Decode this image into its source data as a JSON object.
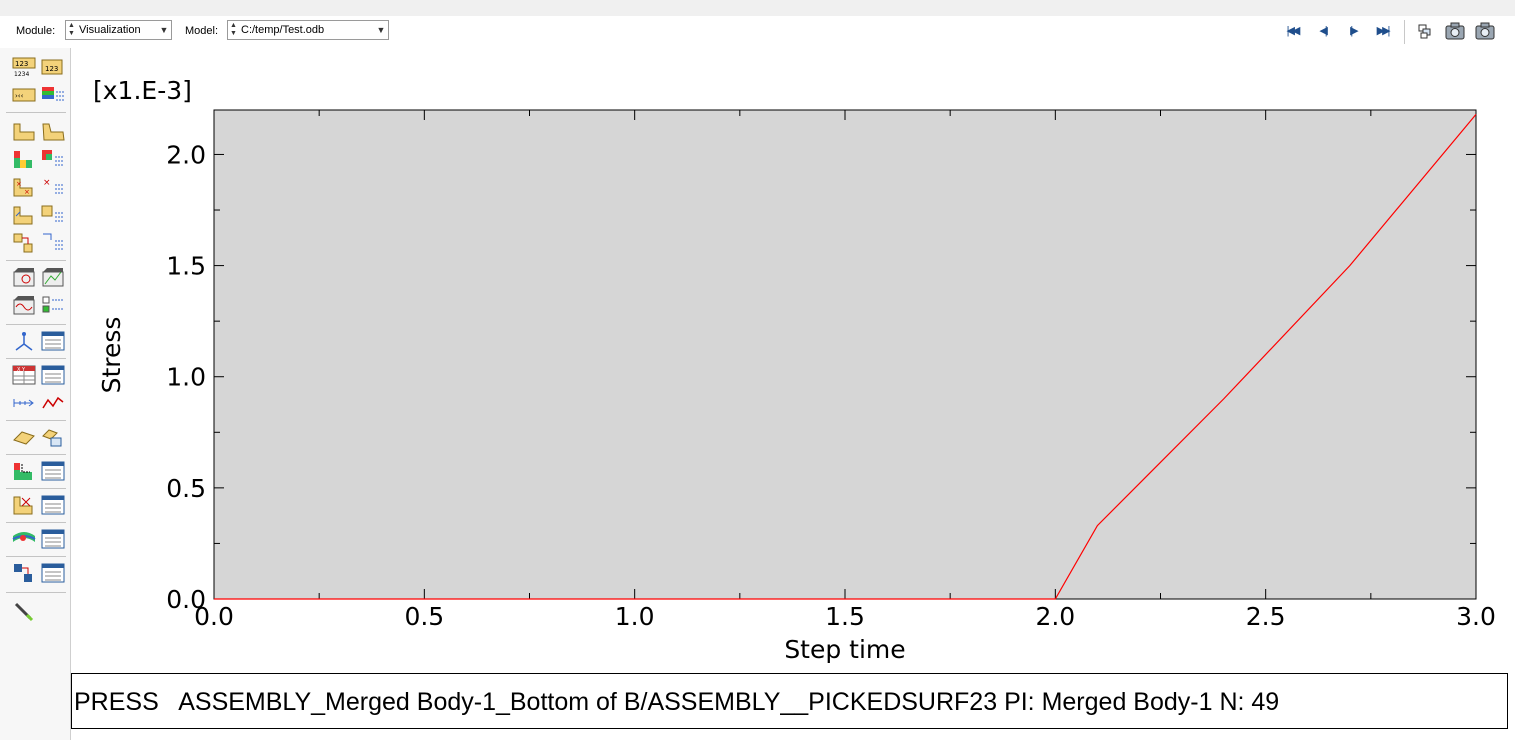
{
  "toolbar": {
    "module_label": "Module:",
    "module_value": "Visualization",
    "model_label": "Model:",
    "model_value": "C:/temp/Test.odb"
  },
  "legend": {
    "symbol": "PRESS",
    "text": "ASSEMBLY_Merged Body-1_Bottom of B/ASSEMBLY__PICKEDSURF23 PI: Merged Body-1 N: 49"
  },
  "colors": {
    "plot_background": "#d6d6d6",
    "curve": "#ff0000",
    "nav_icons": "#1f4e8c"
  },
  "chart_data": {
    "type": "line",
    "xlabel": "Step time",
    "ylabel": "Stress",
    "y_multiplier": "[x1.E-3]",
    "xlim": [
      0.0,
      3.0
    ],
    "ylim": [
      0.0,
      2.2
    ],
    "x_ticks": [
      "0.0",
      "0.5",
      "1.0",
      "1.5",
      "2.0",
      "2.5",
      "3.0"
    ],
    "y_ticks": [
      "0.0",
      "0.5",
      "1.0",
      "1.5",
      "2.0"
    ],
    "grid": false,
    "series": [
      {
        "name": "PRESS",
        "x": [
          0.0,
          2.0,
          2.1,
          2.4,
          2.7,
          3.0
        ],
        "y": [
          0.0,
          0.0,
          0.33,
          0.9,
          1.5,
          2.18
        ]
      }
    ]
  }
}
